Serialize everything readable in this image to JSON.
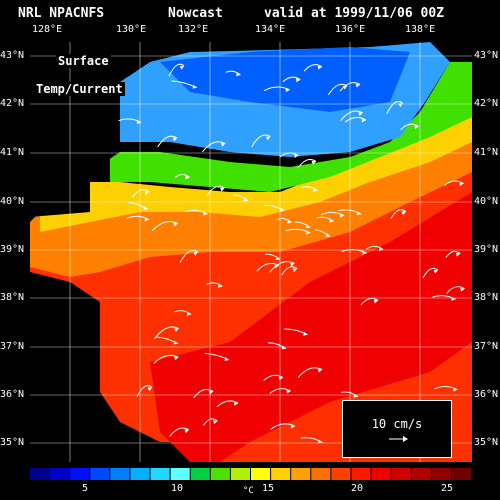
{
  "header": {
    "model": "NRL NPACNFS",
    "product": "Nowcast",
    "valid": "valid at 1999/11/06 00Z"
  },
  "map": {
    "lon_labels": [
      "128°E",
      "130°E",
      "132°E",
      "134°E",
      "136°E",
      "138°E"
    ],
    "lat_labels": [
      "43°N",
      "42°N",
      "41°N",
      "40°N",
      "39°N",
      "38°N",
      "37°N",
      "36°N",
      "35°N"
    ],
    "title_line1": "Surface",
    "title_line2": "Temp/Current",
    "scale_label": "10 cm/s"
  },
  "colorbar": {
    "min": 2,
    "max": 26,
    "ticks": [
      "5",
      "10",
      "15",
      "20",
      "25"
    ],
    "unit": "°C",
    "colors": [
      "#00008f",
      "#0000c8",
      "#0010ff",
      "#0048ff",
      "#0080ff",
      "#00b0ff",
      "#20d8ff",
      "#60ffff",
      "#00d040",
      "#50e000",
      "#b0f000",
      "#ffff00",
      "#ffd000",
      "#ffa000",
      "#ff7000",
      "#ff4000",
      "#ff1800",
      "#f00000",
      "#d00000",
      "#b00000",
      "#900000",
      "#700000"
    ]
  }
}
